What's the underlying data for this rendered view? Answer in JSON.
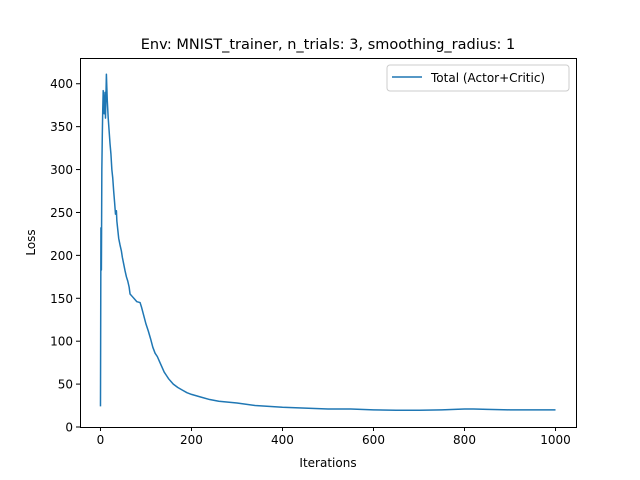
{
  "chart_data": {
    "type": "line",
    "title": "Env: MNIST_trainer, n_trials: 3, smoothing_radius: 1",
    "xlabel": "Iterations",
    "ylabel": "Loss",
    "xlim": [
      -45,
      1045
    ],
    "ylim": [
      0,
      430
    ],
    "xticks": [
      0,
      200,
      400,
      600,
      800,
      1000
    ],
    "yticks": [
      0,
      50,
      100,
      150,
      200,
      250,
      300,
      350,
      400
    ],
    "grid": false,
    "legend_position": "upper right",
    "series": [
      {
        "name": "Total (Actor+Critic)",
        "color": "#1f77b4",
        "points": [
          [
            0,
            24
          ],
          [
            1,
            232
          ],
          [
            2,
            183
          ],
          [
            3,
            300
          ],
          [
            4,
            340
          ],
          [
            5,
            370
          ],
          [
            6,
            392
          ],
          [
            7,
            380
          ],
          [
            8,
            365
          ],
          [
            9,
            372
          ],
          [
            10,
            390
          ],
          [
            11,
            360
          ],
          [
            12,
            385
          ],
          [
            13,
            411
          ],
          [
            14,
            395
          ],
          [
            15,
            380
          ],
          [
            17,
            360
          ],
          [
            19,
            345
          ],
          [
            21,
            330
          ],
          [
            23,
            318
          ],
          [
            25,
            300
          ],
          [
            27,
            290
          ],
          [
            29,
            275
          ],
          [
            31,
            262
          ],
          [
            33,
            248
          ],
          [
            35,
            252
          ],
          [
            36,
            240
          ],
          [
            38,
            230
          ],
          [
            40,
            220
          ],
          [
            43,
            212
          ],
          [
            46,
            205
          ],
          [
            48,
            198
          ],
          [
            51,
            190
          ],
          [
            54,
            182
          ],
          [
            57,
            175
          ],
          [
            60,
            170
          ],
          [
            63,
            163
          ],
          [
            65,
            155
          ],
          [
            70,
            152
          ],
          [
            75,
            149
          ],
          [
            80,
            146
          ],
          [
            87,
            145
          ],
          [
            90,
            140
          ],
          [
            95,
            130
          ],
          [
            100,
            120
          ],
          [
            105,
            112
          ],
          [
            110,
            103
          ],
          [
            115,
            93
          ],
          [
            120,
            86
          ],
          [
            125,
            82
          ],
          [
            130,
            76
          ],
          [
            135,
            70
          ],
          [
            140,
            64
          ],
          [
            145,
            60
          ],
          [
            150,
            56
          ],
          [
            160,
            50
          ],
          [
            170,
            46
          ],
          [
            180,
            43
          ],
          [
            190,
            40
          ],
          [
            200,
            38
          ],
          [
            220,
            35
          ],
          [
            240,
            32
          ],
          [
            260,
            30
          ],
          [
            300,
            28
          ],
          [
            340,
            25
          ],
          [
            400,
            23
          ],
          [
            450,
            22
          ],
          [
            500,
            21
          ],
          [
            550,
            21
          ],
          [
            600,
            20
          ],
          [
            650,
            19.5
          ],
          [
            700,
            19.5
          ],
          [
            750,
            20
          ],
          [
            800,
            21
          ],
          [
            820,
            21
          ],
          [
            850,
            20.5
          ],
          [
            900,
            20
          ],
          [
            950,
            20
          ],
          [
            1000,
            20
          ]
        ]
      }
    ]
  }
}
